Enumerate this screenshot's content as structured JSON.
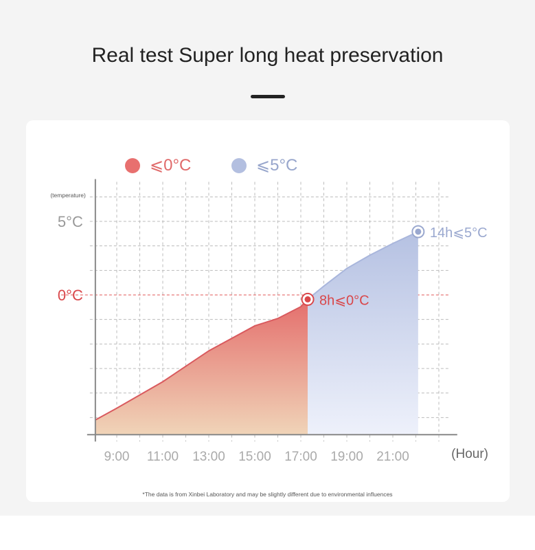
{
  "header": {
    "title": "Real test Super long heat preservation"
  },
  "legend": [
    {
      "label": "⩽0°C",
      "color": "#e8706f"
    },
    {
      "label": "⩽5°C",
      "color": "#b3bfe0"
    }
  ],
  "footnote": "*The data is from Xinbei Laboratory and may be slightly different due to environmental influences",
  "chart_data": {
    "type": "area",
    "ylabel": "(temperature)",
    "xlabel": "(Hour)",
    "x_ticks": [
      "9:00",
      "11:00",
      "13:00",
      "15:00",
      "17:00",
      "19:00",
      "21:00"
    ],
    "y_ticks": [
      {
        "label": "5°C",
        "value": 5,
        "color": "#999999"
      },
      {
        "label": "0°C",
        "value": 0,
        "color": "#d9474a"
      }
    ],
    "xlim": [
      8.07,
      23.8
    ],
    "ylim": [
      -9.5,
      7.5
    ],
    "grid": true,
    "series": [
      {
        "name": "⩽0°C",
        "color": "#e06a6a",
        "points": [
          [
            8.07,
            -8.5
          ],
          [
            9,
            -7.7
          ],
          [
            11,
            -5.9
          ],
          [
            13,
            -3.8
          ],
          [
            15,
            -2.1
          ],
          [
            16,
            -1.6
          ],
          [
            17,
            -0.8
          ],
          [
            17.3,
            -0.3
          ]
        ]
      },
      {
        "name": "⩽5°C",
        "color": "#b3bfe0",
        "points": [
          [
            17.3,
            -0.3
          ],
          [
            18,
            0.6
          ],
          [
            19,
            1.8
          ],
          [
            20,
            2.7
          ],
          [
            21,
            3.5
          ],
          [
            22.1,
            4.3
          ]
        ]
      }
    ],
    "annotations": [
      {
        "label": "8h⩽0°C",
        "x": 17.3,
        "y": -0.3,
        "color": "#d9474a"
      },
      {
        "label": "14h⩽5°C",
        "x": 22.1,
        "y": 4.3,
        "color": "#9aa8cf"
      }
    ]
  }
}
